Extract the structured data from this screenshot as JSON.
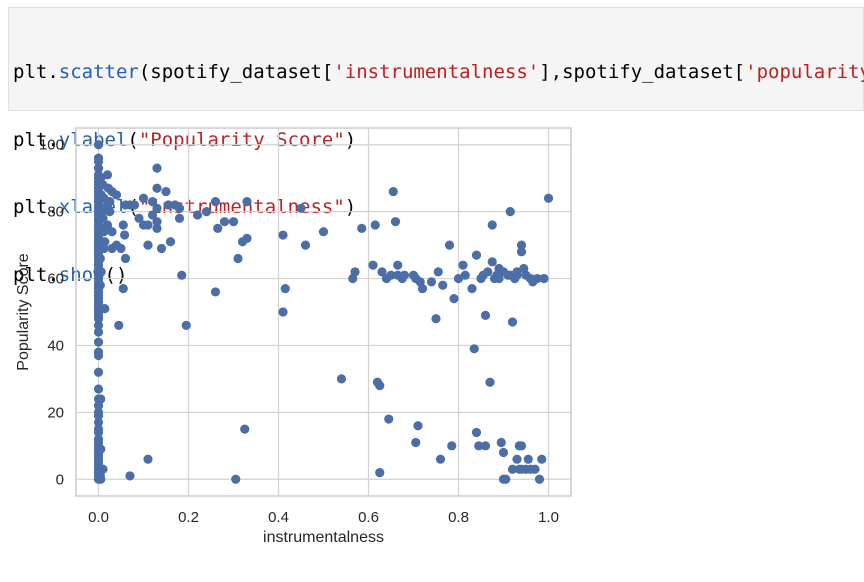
{
  "code_cell": {
    "lines": [
      [
        {
          "t": "plain",
          "v": "plt."
        },
        {
          "t": "fn",
          "v": "scatter"
        },
        {
          "t": "plain",
          "v": "(spotify_dataset["
        },
        {
          "t": "str",
          "v": "'instrumentalness'"
        },
        {
          "t": "plain",
          "v": "],spotify_dataset["
        },
        {
          "t": "str",
          "v": "'popularity'"
        },
        {
          "t": "plain",
          "v": "])"
        }
      ],
      [
        {
          "t": "plain",
          "v": "plt."
        },
        {
          "t": "fn",
          "v": "ylabel"
        },
        {
          "t": "plain",
          "v": "("
        },
        {
          "t": "str",
          "v": "\"Popularity Score\""
        },
        {
          "t": "plain",
          "v": ")"
        }
      ],
      [
        {
          "t": "plain",
          "v": "plt."
        },
        {
          "t": "fn",
          "v": "xlabel"
        },
        {
          "t": "plain",
          "v": "("
        },
        {
          "t": "str",
          "v": "\"instrumentalness\""
        },
        {
          "t": "plain",
          "v": ")"
        }
      ],
      [
        {
          "t": "plain",
          "v": "plt."
        },
        {
          "t": "fn",
          "v": "show"
        },
        {
          "t": "plain",
          "v": "()"
        }
      ]
    ]
  },
  "colors": {
    "code_background": "#f5f5f5",
    "function": "#2060b5",
    "string": "#ba2121",
    "marker": "#4c6ea6",
    "grid": "#d3d3d3",
    "frame": "#cccccc"
  },
  "chart_data": {
    "type": "scatter",
    "xlabel": "instrumentalness",
    "ylabel": "Popularity Score",
    "xlim": [
      -0.05,
      1.05
    ],
    "ylim": [
      -5,
      105
    ],
    "xticks": [
      0.0,
      0.2,
      0.4,
      0.6,
      0.8,
      1.0
    ],
    "xtick_labels": [
      "0.0",
      "0.2",
      "0.4",
      "0.6",
      "0.8",
      "1.0"
    ],
    "yticks": [
      0,
      20,
      40,
      60,
      80,
      100
    ],
    "ytick_labels": [
      "0",
      "20",
      "40",
      "60",
      "80",
      "100"
    ],
    "grid": true,
    "series": [
      {
        "points": [
          [
            0,
            100
          ],
          [
            0,
            96
          ],
          [
            0,
            95
          ],
          [
            0,
            93
          ],
          [
            0,
            91
          ],
          [
            0,
            90
          ],
          [
            0,
            89
          ],
          [
            0,
            88
          ],
          [
            0,
            87
          ],
          [
            0,
            86
          ],
          [
            0,
            85
          ],
          [
            0,
            84
          ],
          [
            0,
            83
          ],
          [
            0,
            82
          ],
          [
            0,
            81
          ],
          [
            0,
            80
          ],
          [
            0,
            79
          ],
          [
            0,
            78
          ],
          [
            0,
            77
          ],
          [
            0,
            76
          ],
          [
            0,
            75
          ],
          [
            0,
            74
          ],
          [
            0,
            73
          ],
          [
            0,
            72
          ],
          [
            0,
            71
          ],
          [
            0,
            70
          ],
          [
            0,
            69
          ],
          [
            0,
            68
          ],
          [
            0,
            67
          ],
          [
            0,
            66
          ],
          [
            0,
            65
          ],
          [
            0,
            64
          ],
          [
            0,
            63
          ],
          [
            0,
            62
          ],
          [
            0,
            61
          ],
          [
            0,
            60
          ],
          [
            0,
            59
          ],
          [
            0,
            58
          ],
          [
            0,
            57
          ],
          [
            0,
            56
          ],
          [
            0,
            55
          ],
          [
            0,
            54
          ],
          [
            0,
            53
          ],
          [
            0,
            52
          ],
          [
            0,
            51
          ],
          [
            0,
            50
          ],
          [
            0,
            49
          ],
          [
            0,
            48
          ],
          [
            0,
            46
          ],
          [
            0,
            44
          ],
          [
            0,
            41
          ],
          [
            0,
            38
          ],
          [
            0,
            37
          ],
          [
            0,
            32
          ],
          [
            0,
            27
          ],
          [
            0,
            24
          ],
          [
            0,
            22
          ],
          [
            0,
            20
          ],
          [
            0,
            19
          ],
          [
            0,
            17
          ],
          [
            0,
            15
          ],
          [
            0,
            14
          ],
          [
            0,
            12
          ],
          [
            0,
            11
          ],
          [
            0,
            10
          ],
          [
            0,
            9
          ],
          [
            0,
            8
          ],
          [
            0,
            7
          ],
          [
            0,
            6
          ],
          [
            0,
            5
          ],
          [
            0,
            4
          ],
          [
            0,
            3
          ],
          [
            0,
            2
          ],
          [
            0,
            1
          ],
          [
            0,
            0
          ],
          [
            0.005,
            90
          ],
          [
            0.006,
            85
          ],
          [
            0.008,
            80
          ],
          [
            0.005,
            75
          ],
          [
            0.007,
            70
          ],
          [
            0.004,
            66
          ],
          [
            0.006,
            62
          ],
          [
            0.004,
            58
          ],
          [
            0.005,
            24
          ],
          [
            0.005,
            9
          ],
          [
            0.004,
            1
          ],
          [
            0.005,
            0
          ],
          [
            0.01,
            88
          ],
          [
            0.012,
            84
          ],
          [
            0.01,
            78
          ],
          [
            0.012,
            74
          ],
          [
            0.014,
            71
          ],
          [
            0.012,
            69
          ],
          [
            0.014,
            51
          ],
          [
            0.01,
            3
          ],
          [
            0.02,
            91
          ],
          [
            0.022,
            87
          ],
          [
            0.02,
            82
          ],
          [
            0.025,
            80
          ],
          [
            0.02,
            76
          ],
          [
            0.03,
            86
          ],
          [
            0.03,
            74
          ],
          [
            0.03,
            69
          ],
          [
            0.025,
            83
          ],
          [
            0.04,
            85
          ],
          [
            0.04,
            70
          ],
          [
            0.045,
            46
          ],
          [
            0.05,
            69
          ],
          [
            0.055,
            57
          ],
          [
            0.055,
            76
          ],
          [
            0.06,
            82
          ],
          [
            0.058,
            73
          ],
          [
            0.06,
            66
          ],
          [
            0.07,
            82
          ],
          [
            0.07,
            1
          ],
          [
            0.08,
            82
          ],
          [
            0.09,
            78
          ],
          [
            0.1,
            84
          ],
          [
            0.1,
            76
          ],
          [
            0.11,
            76
          ],
          [
            0.11,
            70
          ],
          [
            0.11,
            6
          ],
          [
            0.12,
            83
          ],
          [
            0.12,
            79
          ],
          [
            0.13,
            93
          ],
          [
            0.13,
            87
          ],
          [
            0.13,
            81
          ],
          [
            0.13,
            77
          ],
          [
            0.13,
            75
          ],
          [
            0.14,
            69
          ],
          [
            0.15,
            86
          ],
          [
            0.155,
            82
          ],
          [
            0.16,
            71
          ],
          [
            0.17,
            82
          ],
          [
            0.18,
            81
          ],
          [
            0.18,
            78
          ],
          [
            0.185,
            61
          ],
          [
            0.195,
            46
          ],
          [
            0.22,
            79
          ],
          [
            0.24,
            80
          ],
          [
            0.26,
            83
          ],
          [
            0.265,
            75
          ],
          [
            0.26,
            56
          ],
          [
            0.28,
            77
          ],
          [
            0.3,
            77
          ],
          [
            0.31,
            66
          ],
          [
            0.305,
            0
          ],
          [
            0.32,
            71
          ],
          [
            0.33,
            72
          ],
          [
            0.33,
            83
          ],
          [
            0.325,
            15
          ],
          [
            0.41,
            73
          ],
          [
            0.41,
            50
          ],
          [
            0.415,
            57
          ],
          [
            0.45,
            81
          ],
          [
            0.46,
            70
          ],
          [
            0.5,
            74
          ],
          [
            0.54,
            30
          ],
          [
            0.565,
            60
          ],
          [
            0.57,
            62
          ],
          [
            0.585,
            75
          ],
          [
            0.61,
            64
          ],
          [
            0.615,
            76
          ],
          [
            0.62,
            29
          ],
          [
            0.625,
            28
          ],
          [
            0.625,
            2
          ],
          [
            0.63,
            62
          ],
          [
            0.64,
            60
          ],
          [
            0.645,
            18
          ],
          [
            0.65,
            61
          ],
          [
            0.655,
            86
          ],
          [
            0.66,
            77
          ],
          [
            0.665,
            64
          ],
          [
            0.665,
            61
          ],
          [
            0.675,
            60
          ],
          [
            0.68,
            61
          ],
          [
            0.7,
            61
          ],
          [
            0.705,
            60
          ],
          [
            0.705,
            11
          ],
          [
            0.71,
            16
          ],
          [
            0.715,
            59
          ],
          [
            0.72,
            57
          ],
          [
            0.74,
            59
          ],
          [
            0.75,
            48
          ],
          [
            0.755,
            62
          ],
          [
            0.76,
            6
          ],
          [
            0.765,
            58
          ],
          [
            0.78,
            70
          ],
          [
            0.785,
            10
          ],
          [
            0.79,
            54
          ],
          [
            0.8,
            60
          ],
          [
            0.81,
            64
          ],
          [
            0.815,
            61
          ],
          [
            0.83,
            57
          ],
          [
            0.835,
            39
          ],
          [
            0.84,
            67
          ],
          [
            0.84,
            14
          ],
          [
            0.845,
            10
          ],
          [
            0.85,
            60
          ],
          [
            0.855,
            61
          ],
          [
            0.86,
            49
          ],
          [
            0.86,
            10
          ],
          [
            0.865,
            62
          ],
          [
            0.87,
            29
          ],
          [
            0.875,
            65
          ],
          [
            0.875,
            76
          ],
          [
            0.88,
            60
          ],
          [
            0.885,
            61
          ],
          [
            0.89,
            63
          ],
          [
            0.89,
            60
          ],
          [
            0.895,
            11
          ],
          [
            0.9,
            62
          ],
          [
            0.9,
            8
          ],
          [
            0.9,
            0
          ],
          [
            0.905,
            0
          ],
          [
            0.91,
            61
          ],
          [
            0.915,
            80
          ],
          [
            0.915,
            61
          ],
          [
            0.92,
            47
          ],
          [
            0.92,
            3
          ],
          [
            0.925,
            60
          ],
          [
            0.93,
            62
          ],
          [
            0.93,
            61
          ],
          [
            0.93,
            6
          ],
          [
            0.935,
            10
          ],
          [
            0.935,
            3
          ],
          [
            0.94,
            70
          ],
          [
            0.94,
            68
          ],
          [
            0.94,
            10
          ],
          [
            0.94,
            3
          ],
          [
            0.945,
            63
          ],
          [
            0.95,
            61
          ],
          [
            0.95,
            3
          ],
          [
            0.955,
            6
          ],
          [
            0.96,
            60
          ],
          [
            0.96,
            3
          ],
          [
            0.965,
            59
          ],
          [
            0.97,
            3
          ],
          [
            0.975,
            60
          ],
          [
            0.98,
            0
          ],
          [
            0.985,
            6
          ],
          [
            0.99,
            60
          ],
          [
            1.0,
            84
          ]
        ]
      }
    ]
  }
}
